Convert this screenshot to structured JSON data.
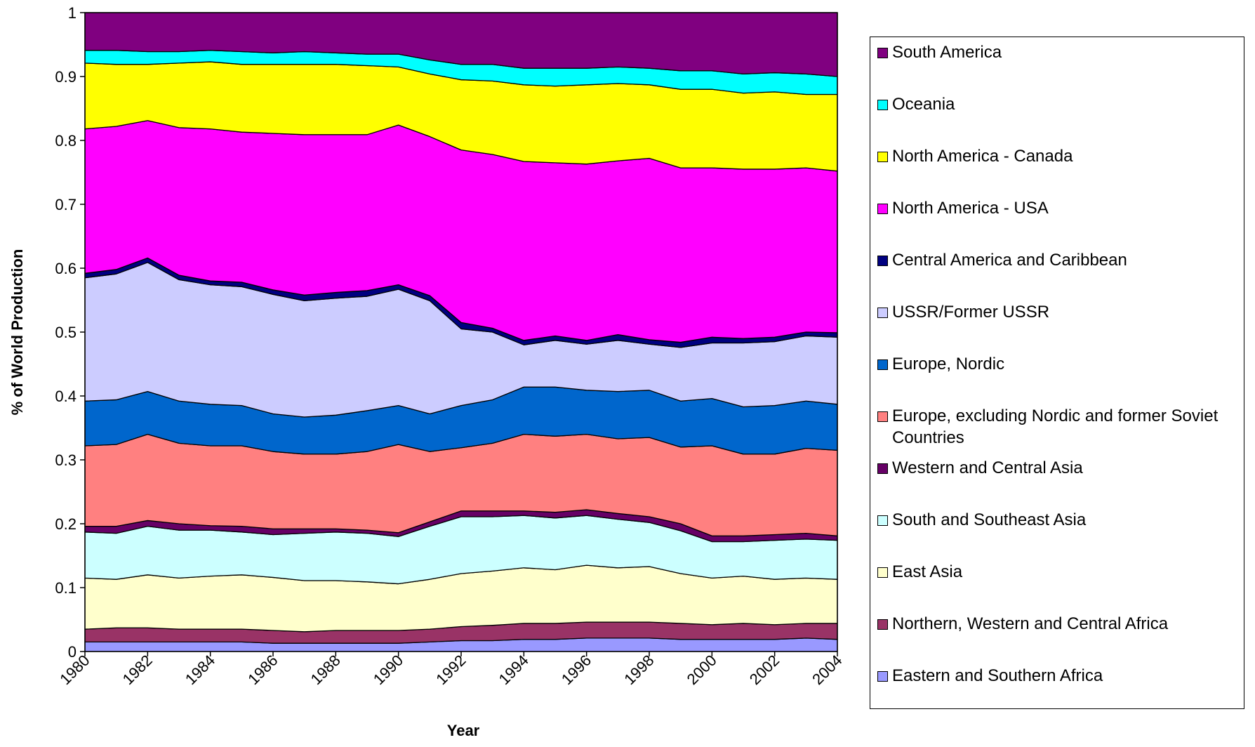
{
  "chart_data": {
    "type": "stacked-area",
    "x_label": "Year",
    "y_label": "% of World Production",
    "x": [
      1980,
      1981,
      1982,
      1983,
      1984,
      1985,
      1986,
      1987,
      1988,
      1989,
      1990,
      1991,
      1992,
      1993,
      1994,
      1995,
      1996,
      1997,
      1998,
      1999,
      2000,
      2001,
      2002,
      2003,
      2004
    ],
    "xlim": [
      1980,
      2004
    ],
    "xticks": [
      1980,
      1982,
      1984,
      1986,
      1988,
      1990,
      1992,
      1994,
      1996,
      1998,
      2000,
      2002,
      2004
    ],
    "ylim": [
      0,
      1
    ],
    "yticks": [
      0,
      0.1,
      0.2,
      0.3,
      0.4,
      0.5,
      0.6,
      0.7,
      0.8,
      0.9,
      1
    ],
    "legend": "right",
    "series": [
      {
        "name": "Eastern and Southern Africa",
        "color": "#9999ff",
        "values": [
          0.015,
          0.015,
          0.015,
          0.015,
          0.015,
          0.015,
          0.013,
          0.013,
          0.013,
          0.013,
          0.013,
          0.015,
          0.017,
          0.017,
          0.019,
          0.019,
          0.021,
          0.021,
          0.021,
          0.019,
          0.019,
          0.019,
          0.019,
          0.021,
          0.019
        ]
      },
      {
        "name": "Northern, Western and Central Africa",
        "color": "#993366",
        "values": [
          0.02,
          0.022,
          0.022,
          0.02,
          0.02,
          0.02,
          0.02,
          0.018,
          0.02,
          0.02,
          0.02,
          0.02,
          0.022,
          0.024,
          0.025,
          0.025,
          0.025,
          0.025,
          0.025,
          0.025,
          0.023,
          0.025,
          0.023,
          0.023,
          0.025
        ]
      },
      {
        "name": "East Asia",
        "color": "#ffffcc",
        "values": [
          0.08,
          0.076,
          0.083,
          0.08,
          0.083,
          0.085,
          0.083,
          0.08,
          0.078,
          0.076,
          0.073,
          0.078,
          0.083,
          0.085,
          0.087,
          0.084,
          0.089,
          0.085,
          0.087,
          0.078,
          0.073,
          0.074,
          0.071,
          0.071,
          0.069
        ]
      },
      {
        "name": "South and Southeast Asia",
        "color": "#ccffff",
        "values": [
          0.072,
          0.072,
          0.076,
          0.075,
          0.072,
          0.067,
          0.067,
          0.074,
          0.076,
          0.076,
          0.074,
          0.083,
          0.089,
          0.085,
          0.082,
          0.081,
          0.078,
          0.076,
          0.069,
          0.067,
          0.057,
          0.054,
          0.061,
          0.061,
          0.061
        ]
      },
      {
        "name": "Western and Central Asia",
        "color": "#660066",
        "values": [
          0.009,
          0.011,
          0.009,
          0.01,
          0.007,
          0.009,
          0.009,
          0.007,
          0.005,
          0.005,
          0.006,
          0.007,
          0.009,
          0.009,
          0.007,
          0.009,
          0.009,
          0.009,
          0.009,
          0.011,
          0.009,
          0.009,
          0.009,
          0.009,
          0.007
        ]
      },
      {
        "name": "Europe, excluding Nordic and former Soviet Countries",
        "color": "#ff8080",
        "values": [
          0.126,
          0.128,
          0.135,
          0.126,
          0.125,
          0.126,
          0.121,
          0.117,
          0.117,
          0.123,
          0.138,
          0.11,
          0.099,
          0.106,
          0.12,
          0.119,
          0.118,
          0.117,
          0.124,
          0.12,
          0.141,
          0.128,
          0.126,
          0.133,
          0.134
        ]
      },
      {
        "name": "Europe, Nordic",
        "color": "#0066cc",
        "values": [
          0.07,
          0.07,
          0.067,
          0.066,
          0.065,
          0.063,
          0.059,
          0.058,
          0.061,
          0.064,
          0.061,
          0.059,
          0.066,
          0.068,
          0.074,
          0.077,
          0.069,
          0.074,
          0.074,
          0.072,
          0.074,
          0.074,
          0.076,
          0.074,
          0.072
        ]
      },
      {
        "name": "USSR/Former USSR",
        "color": "#ccccff",
        "values": [
          0.193,
          0.197,
          0.202,
          0.19,
          0.187,
          0.186,
          0.187,
          0.182,
          0.183,
          0.179,
          0.182,
          0.177,
          0.12,
          0.106,
          0.066,
          0.073,
          0.072,
          0.08,
          0.072,
          0.084,
          0.087,
          0.1,
          0.1,
          0.102,
          0.105
        ]
      },
      {
        "name": "Central America and Caribbean",
        "color": "#000080",
        "values": [
          0.007,
          0.007,
          0.007,
          0.007,
          0.006,
          0.007,
          0.007,
          0.009,
          0.009,
          0.009,
          0.007,
          0.008,
          0.01,
          0.006,
          0.007,
          0.007,
          0.006,
          0.009,
          0.007,
          0.008,
          0.009,
          0.007,
          0.007,
          0.006,
          0.007
        ]
      },
      {
        "name": "North America - USA",
        "color": "#ff00ff",
        "values": [
          0.226,
          0.224,
          0.215,
          0.231,
          0.238,
          0.235,
          0.245,
          0.251,
          0.247,
          0.244,
          0.25,
          0.249,
          0.27,
          0.272,
          0.28,
          0.271,
          0.276,
          0.272,
          0.284,
          0.273,
          0.265,
          0.265,
          0.263,
          0.257,
          0.253
        ]
      },
      {
        "name": "North America - Canada",
        "color": "#ffff00",
        "values": [
          0.103,
          0.097,
          0.088,
          0.101,
          0.105,
          0.106,
          0.108,
          0.11,
          0.11,
          0.108,
          0.091,
          0.098,
          0.11,
          0.115,
          0.12,
          0.12,
          0.124,
          0.121,
          0.115,
          0.123,
          0.123,
          0.119,
          0.121,
          0.115,
          0.12
        ]
      },
      {
        "name": "Oceania",
        "color": "#00ffff",
        "values": [
          0.02,
          0.022,
          0.02,
          0.018,
          0.018,
          0.02,
          0.018,
          0.02,
          0.018,
          0.018,
          0.02,
          0.022,
          0.024,
          0.026,
          0.026,
          0.028,
          0.026,
          0.026,
          0.026,
          0.029,
          0.029,
          0.03,
          0.03,
          0.032,
          0.028
        ]
      },
      {
        "name": "South America",
        "color": "#800080",
        "values": [
          0.059,
          0.059,
          0.061,
          0.061,
          0.059,
          0.061,
          0.063,
          0.061,
          0.063,
          0.065,
          0.065,
          0.074,
          0.081,
          0.081,
          0.087,
          0.087,
          0.087,
          0.085,
          0.087,
          0.091,
          0.091,
          0.096,
          0.094,
          0.096,
          0.1
        ]
      }
    ]
  }
}
